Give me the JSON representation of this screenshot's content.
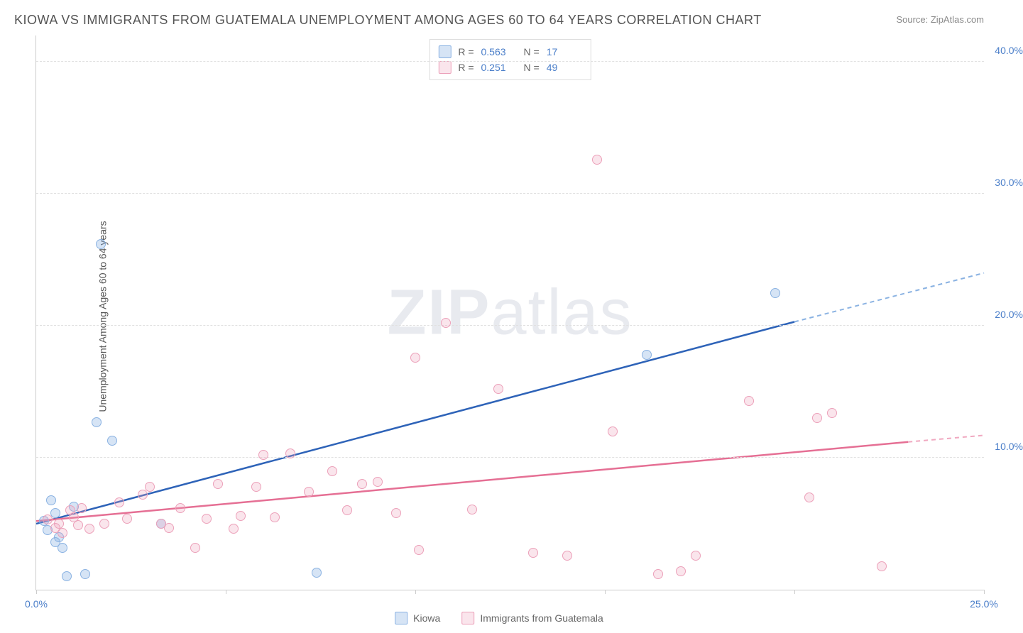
{
  "title": "KIOWA VS IMMIGRANTS FROM GUATEMALA UNEMPLOYMENT AMONG AGES 60 TO 64 YEARS CORRELATION CHART",
  "source": "Source: ZipAtlas.com",
  "y_axis_label": "Unemployment Among Ages 60 to 64 years",
  "watermark": "ZIPatlas",
  "chart": {
    "type": "scatter",
    "xlim": [
      0,
      25
    ],
    "ylim": [
      0,
      42
    ],
    "x_ticks": [
      0,
      5,
      10,
      15,
      20,
      25
    ],
    "y_ticks": [
      10,
      20,
      30,
      40
    ],
    "x_tick_labels": [
      "0.0%",
      "",
      "",
      "",
      "",
      "25.0%"
    ],
    "y_tick_labels": [
      "10.0%",
      "20.0%",
      "30.0%",
      "40.0%"
    ],
    "background_color": "#ffffff",
    "grid_color": "#e0e0e0",
    "axis_color": "#cccccc",
    "tick_label_color": "#4a7ec9",
    "marker_radius": 7,
    "series": [
      {
        "name": "Kiowa",
        "color_fill": "rgba(138,178,226,0.35)",
        "color_stroke": "#8ab2e2",
        "line_color": "#2e63b8",
        "line_dash_color": "#8ab2e2",
        "r": 0.563,
        "n": 17,
        "regression": {
          "x1": 0,
          "y1": 5.0,
          "x2_solid": 20,
          "y2_solid": 20.3,
          "x2_dash": 25,
          "y2_dash": 24.0
        },
        "points": [
          [
            0.2,
            5.2
          ],
          [
            0.3,
            4.5
          ],
          [
            0.4,
            6.8
          ],
          [
            0.5,
            3.6
          ],
          [
            0.6,
            4.0
          ],
          [
            0.7,
            3.2
          ],
          [
            0.8,
            1.0
          ],
          [
            1.0,
            6.3
          ],
          [
            1.3,
            1.2
          ],
          [
            1.6,
            12.7
          ],
          [
            1.7,
            26.2
          ],
          [
            2.0,
            11.3
          ],
          [
            3.3,
            5.0
          ],
          [
            7.4,
            1.3
          ],
          [
            16.1,
            17.8
          ],
          [
            19.5,
            22.5
          ],
          [
            0.5,
            5.8
          ]
        ]
      },
      {
        "name": "Immigrants from Guatemala",
        "color_fill": "rgba(236,160,185,0.28)",
        "color_stroke": "#eca0b9",
        "line_color": "#e56f94",
        "line_dash_color": "#f0a8c0",
        "r": 0.251,
        "n": 49,
        "regression": {
          "x1": 0,
          "y1": 5.2,
          "x2_solid": 23,
          "y2_solid": 11.2,
          "x2_dash": 25,
          "y2_dash": 11.7
        },
        "points": [
          [
            0.3,
            5.3
          ],
          [
            0.6,
            5.0
          ],
          [
            0.9,
            6.0
          ],
          [
            1.0,
            5.5
          ],
          [
            1.2,
            6.2
          ],
          [
            1.4,
            4.6
          ],
          [
            1.8,
            5.0
          ],
          [
            2.2,
            6.6
          ],
          [
            2.4,
            5.4
          ],
          [
            2.8,
            7.2
          ],
          [
            3.0,
            7.8
          ],
          [
            3.3,
            5.0
          ],
          [
            3.5,
            4.7
          ],
          [
            3.8,
            6.2
          ],
          [
            4.2,
            3.2
          ],
          [
            4.5,
            5.4
          ],
          [
            4.8,
            8.0
          ],
          [
            5.2,
            4.6
          ],
          [
            5.4,
            5.6
          ],
          [
            5.8,
            7.8
          ],
          [
            6.0,
            10.2
          ],
          [
            6.3,
            5.5
          ],
          [
            6.7,
            10.3
          ],
          [
            7.2,
            7.4
          ],
          [
            7.8,
            9.0
          ],
          [
            8.2,
            6.0
          ],
          [
            8.6,
            8.0
          ],
          [
            9.0,
            8.2
          ],
          [
            9.5,
            5.8
          ],
          [
            10.0,
            17.6
          ],
          [
            10.1,
            3.0
          ],
          [
            10.8,
            20.2
          ],
          [
            11.5,
            6.1
          ],
          [
            12.2,
            15.2
          ],
          [
            13.1,
            2.8
          ],
          [
            14.0,
            2.6
          ],
          [
            14.8,
            32.6
          ],
          [
            15.2,
            12.0
          ],
          [
            16.4,
            1.2
          ],
          [
            17.0,
            1.4
          ],
          [
            17.4,
            2.6
          ],
          [
            18.8,
            14.3
          ],
          [
            20.4,
            7.0
          ],
          [
            20.6,
            13.0
          ],
          [
            21.0,
            13.4
          ],
          [
            22.3,
            1.8
          ],
          [
            0.5,
            4.7
          ],
          [
            0.7,
            4.3
          ],
          [
            1.1,
            4.9
          ]
        ]
      }
    ]
  },
  "legend_top": {
    "r_label": "R =",
    "n_label": "N ="
  },
  "legend_bottom": {
    "series1_label": "Kiowa",
    "series2_label": "Immigrants from Guatemala"
  }
}
